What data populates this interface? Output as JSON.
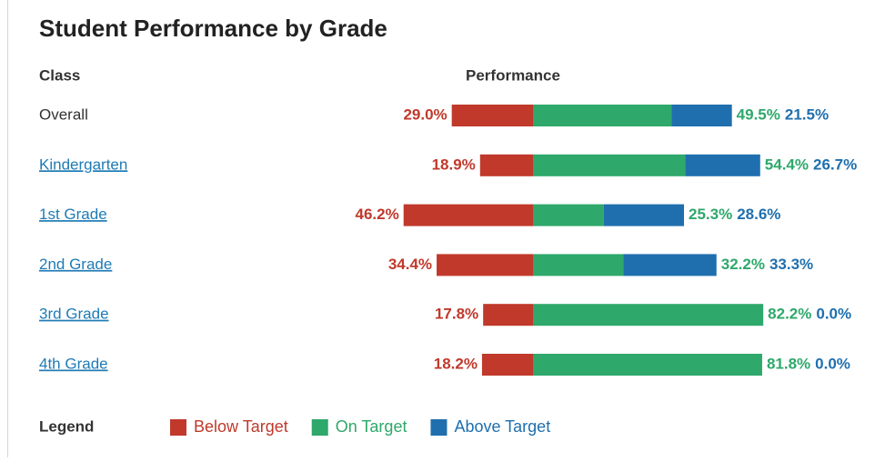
{
  "chart_data": {
    "type": "diverging-bar",
    "title": "Student Performance by Grade",
    "category_header": "Class",
    "value_header": "Performance",
    "legend_title": "Legend",
    "categories": [
      "Overall",
      "Kindergarten",
      "1st Grade",
      "2nd Grade",
      "3rd Grade",
      "4th Grade"
    ],
    "series": [
      {
        "name": "Below Target",
        "color": "#c0392b",
        "values": [
          29.0,
          18.9,
          46.2,
          34.4,
          17.8,
          18.2
        ],
        "value_labels": [
          "29.0%",
          "18.9%",
          "46.2%",
          "34.4%",
          "17.8%",
          "18.2%"
        ]
      },
      {
        "name": "On Target",
        "color": "#2ea86b",
        "values": [
          49.5,
          54.4,
          25.3,
          32.2,
          82.2,
          81.8
        ],
        "value_labels": [
          "49.5%",
          "54.4%",
          "25.3%",
          "32.2%",
          "82.2%",
          "81.8%"
        ]
      },
      {
        "name": "Above Target",
        "color": "#1f6fae",
        "values": [
          21.5,
          26.7,
          28.6,
          33.3,
          0.0,
          0.0
        ],
        "value_labels": [
          "21.5%",
          "26.7%",
          "28.6%",
          "33.3%",
          "0.0%",
          "0.0%"
        ]
      }
    ]
  }
}
